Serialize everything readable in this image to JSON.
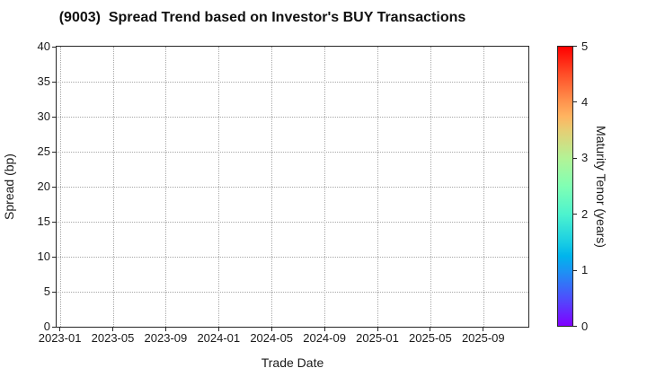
{
  "chart_data": {
    "type": "scatter",
    "title": "(9003)  Spread Trend based on Investor's BUY Transactions",
    "xlabel": "Trade Date",
    "ylabel": "Spread (bp)",
    "xticks": [
      "2023-01",
      "2023-05",
      "2023-09",
      "2024-01",
      "2024-05",
      "2024-09",
      "2025-01",
      "2025-05",
      "2025-09"
    ],
    "yticks": [
      0,
      5,
      10,
      15,
      20,
      25,
      30,
      35,
      40
    ],
    "ylim": [
      0,
      40
    ],
    "grid": true,
    "grid_style": "dotted",
    "points": [],
    "legend_position": "none",
    "colorbar": {
      "label": "Maturity Tenor (years)",
      "ticks": [
        0,
        1,
        2,
        3,
        4,
        5
      ],
      "lim": [
        0,
        5
      ],
      "colormap": "rainbow",
      "stops": [
        {
          "pos": 0.0,
          "color": "#8000ff"
        },
        {
          "pos": 0.1,
          "color": "#4d4ffc"
        },
        {
          "pos": 0.2,
          "color": "#1a96f3"
        },
        {
          "pos": 0.25,
          "color": "#00b4ec"
        },
        {
          "pos": 0.3,
          "color": "#1acee3"
        },
        {
          "pos": 0.4,
          "color": "#4df3ce"
        },
        {
          "pos": 0.5,
          "color": "#80ffb4"
        },
        {
          "pos": 0.6,
          "color": "#b3f396"
        },
        {
          "pos": 0.7,
          "color": "#e6ce74"
        },
        {
          "pos": 0.75,
          "color": "#ffb461"
        },
        {
          "pos": 0.8,
          "color": "#ff964f"
        },
        {
          "pos": 0.9,
          "color": "#ff4f28"
        },
        {
          "pos": 1.0,
          "color": "#ff0000"
        }
      ]
    }
  },
  "colors": {
    "background": "#ffffff",
    "spine": "#262626",
    "grid": "#a8a8a8",
    "text": "#1a1a1a"
  }
}
